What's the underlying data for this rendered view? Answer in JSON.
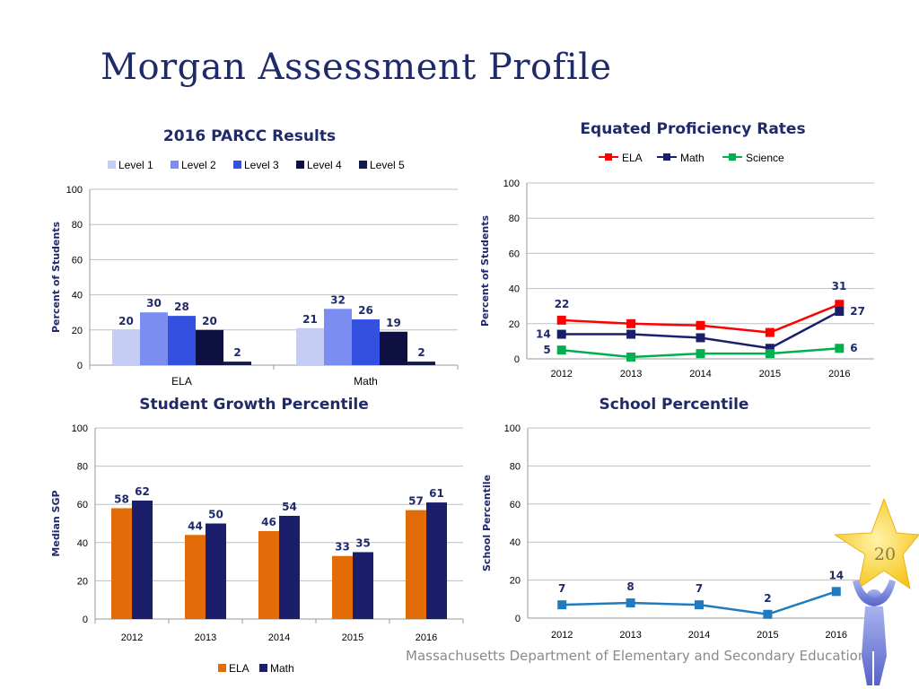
{
  "title": "Morgan  Assessment Profile",
  "footer": "Massachusetts Department of Elementary and Secondary Education",
  "page_number": "20",
  "colors": {
    "title": "#1f2a6b",
    "ela_orange": "#e36c09",
    "math_navy": "#1b1f6b",
    "ela_red": "#ff0000",
    "math_line": "#1b1f6b",
    "science_green": "#00b050",
    "percentile_blue": "#1f7bc0",
    "star_gold": "#ffd34d"
  },
  "chart_data": [
    {
      "id": "parcc",
      "type": "bar",
      "title": "2016 PARCC Results",
      "ylabel": "Percent of Students",
      "xlabel": "",
      "ylim": [
        0,
        100
      ],
      "yticks": [
        0,
        20,
        40,
        60,
        80,
        100
      ],
      "grid": true,
      "legend_position": "top",
      "categories": [
        "ELA",
        "Math"
      ],
      "series": [
        {
          "name": "Level 1",
          "color": "#c5cdf5",
          "values": [
            20,
            21
          ]
        },
        {
          "name": "Level 2",
          "color": "#7b8df0",
          "values": [
            30,
            32
          ]
        },
        {
          "name": "Level 3",
          "color": "#3450e0",
          "values": [
            28,
            26
          ]
        },
        {
          "name": "Level 4",
          "color": "#0d1040",
          "values": [
            20,
            19
          ]
        },
        {
          "name": "Level 5",
          "color": "#121a4a",
          "values": [
            2,
            2
          ]
        }
      ]
    },
    {
      "id": "proficiency",
      "type": "line",
      "title": "Equated Proficiency  Rates",
      "ylabel": "Percent of Students",
      "xlabel": "",
      "ylim": [
        0,
        100
      ],
      "yticks": [
        0,
        20,
        40,
        60,
        80,
        100
      ],
      "grid": true,
      "legend_position": "top",
      "categories": [
        "2012",
        "2013",
        "2014",
        "2015",
        "2016"
      ],
      "series": [
        {
          "name": "ELA",
          "color": "#ff0000",
          "values": [
            22,
            20,
            19,
            15,
            31
          ],
          "labels": [
            [
              0,
              "22"
            ],
            [
              4,
              "31"
            ]
          ]
        },
        {
          "name": "Math",
          "color": "#1b1f6b",
          "values": [
            14,
            14,
            12,
            6,
            27
          ],
          "labels": [
            [
              0,
              "14"
            ],
            [
              4,
              "27"
            ]
          ]
        },
        {
          "name": "Science",
          "color": "#00b050",
          "values": [
            5,
            1,
            3,
            3,
            6
          ],
          "labels": [
            [
              0,
              "5"
            ],
            [
              4,
              "6"
            ]
          ]
        }
      ]
    },
    {
      "id": "sgp",
      "type": "bar",
      "title": "Student Growth Percentile",
      "ylabel": "Median SGP",
      "xlabel": "",
      "ylim": [
        0,
        100
      ],
      "yticks": [
        0,
        20,
        40,
        60,
        80,
        100
      ],
      "grid": true,
      "legend_position": "bottom",
      "categories": [
        "2012",
        "2013",
        "2014",
        "2015",
        "2016"
      ],
      "series": [
        {
          "name": "ELA",
          "color": "#e36c09",
          "values": [
            58,
            44,
            46,
            33,
            57
          ]
        },
        {
          "name": "Math",
          "color": "#1b1f6b",
          "values": [
            62,
            50,
            54,
            35,
            61
          ]
        }
      ]
    },
    {
      "id": "percentile",
      "type": "line",
      "title": "School Percentile",
      "ylabel": "School Percentile",
      "xlabel": "",
      "ylim": [
        0,
        100
      ],
      "yticks": [
        0,
        20,
        40,
        60,
        80,
        100
      ],
      "grid": true,
      "legend_position": "none",
      "categories": [
        "2012",
        "2013",
        "2014",
        "2015",
        "2016"
      ],
      "series": [
        {
          "name": "",
          "color": "#1f7bc0",
          "values": [
            7,
            8,
            7,
            2,
            14
          ]
        }
      ]
    }
  ]
}
